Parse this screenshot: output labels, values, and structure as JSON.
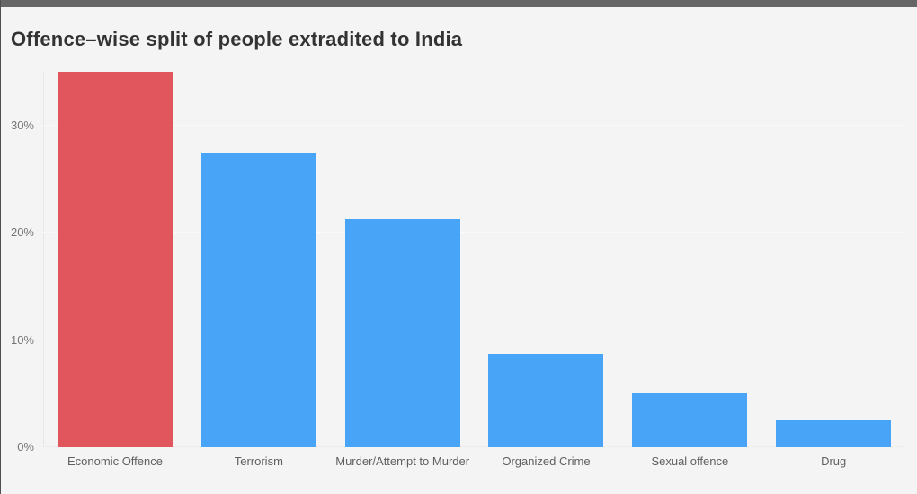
{
  "window": {
    "background_color": "#f4f4f4",
    "top_edge_color": "#666666",
    "left_edge_color": "#4f4f4f"
  },
  "header": {
    "title": "Offence–wise split of people extradited to India",
    "title_color": "#333333"
  },
  "chart_data": {
    "type": "bar",
    "title": "Offence–wise split of people extradited to India",
    "categories": [
      "Economic Offence",
      "Terrorism",
      "Murder/Attempt to Murder",
      "Organized Crime",
      "Sexual offence",
      "Drug"
    ],
    "values": [
      35,
      27.5,
      21.25,
      8.75,
      5,
      2.5
    ],
    "unit": "%",
    "bar_colors": [
      "#e0565c",
      "#48a4f7",
      "#48a4f7",
      "#48a4f7",
      "#48a4f7",
      "#48a4f7"
    ],
    "highlight_color": "#e0565c",
    "default_bar_color": "#48a4f7",
    "xlabel": "",
    "ylabel": "",
    "ylim": [
      0,
      35
    ],
    "yticks": [
      0,
      10,
      20,
      30
    ],
    "ytick_labels": [
      "0%",
      "10%",
      "20%",
      "30%"
    ],
    "grid": true,
    "gridline_color": "#fafafa",
    "axis_line_color": "#e7e7e7",
    "tick_label_color": "#757575",
    "category_label_color": "#5f5f5f",
    "legend": "none"
  }
}
